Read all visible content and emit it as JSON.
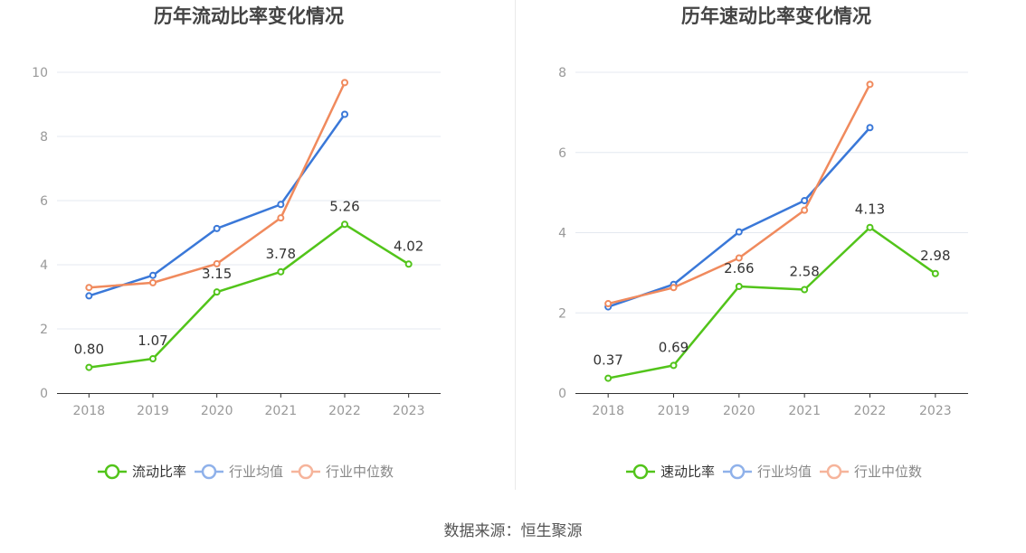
{
  "colors": {
    "main": "#52c41a",
    "avg": "#3a78d8",
    "median": "#f08a5d",
    "avg_legend": "#8fb1ea",
    "median_legend": "#f6b49b",
    "axis": "#333333",
    "grid": "#e4e8f0",
    "tick": "#999999",
    "title": "#444444",
    "label": "#333333"
  },
  "source_text": "数据来源：恒生聚源",
  "chart_data": [
    {
      "type": "line",
      "title": "历年流动比率变化情况",
      "categories": [
        "2018",
        "2019",
        "2020",
        "2021",
        "2022",
        "2023"
      ],
      "ylim": [
        0,
        10
      ],
      "yticks": [
        0,
        2,
        4,
        6,
        8,
        10
      ],
      "grid": true,
      "legend_position": "bottom",
      "series": [
        {
          "name": "流动比率",
          "key": "main",
          "values": [
            0.8,
            1.07,
            3.15,
            3.78,
            5.26,
            4.02
          ],
          "labels": [
            "0.80",
            "1.07",
            "3.15",
            "3.78",
            "5.26",
            "4.02"
          ]
        },
        {
          "name": "行业均值",
          "key": "avg",
          "values": [
            3.03,
            3.67,
            5.13,
            5.88,
            8.69,
            null
          ]
        },
        {
          "name": "行业中位数",
          "key": "median",
          "values": [
            3.29,
            3.44,
            4.03,
            5.46,
            9.68,
            null
          ]
        }
      ]
    },
    {
      "type": "line",
      "title": "历年速动比率变化情况",
      "categories": [
        "2018",
        "2019",
        "2020",
        "2021",
        "2022",
        "2023"
      ],
      "ylim": [
        0,
        8
      ],
      "yticks": [
        0,
        2,
        4,
        6,
        8
      ],
      "grid": true,
      "legend_position": "bottom",
      "series": [
        {
          "name": "速动比率",
          "key": "main",
          "values": [
            0.37,
            0.69,
            2.66,
            2.58,
            4.13,
            2.98
          ],
          "labels": [
            "0.37",
            "0.69",
            "2.66",
            "2.58",
            "4.13",
            "2.98"
          ]
        },
        {
          "name": "行业均值",
          "key": "avg",
          "values": [
            2.15,
            2.71,
            4.02,
            4.8,
            6.62,
            null
          ]
        },
        {
          "name": "行业中位数",
          "key": "median",
          "values": [
            2.23,
            2.63,
            3.37,
            4.56,
            7.7,
            null
          ]
        }
      ]
    }
  ]
}
